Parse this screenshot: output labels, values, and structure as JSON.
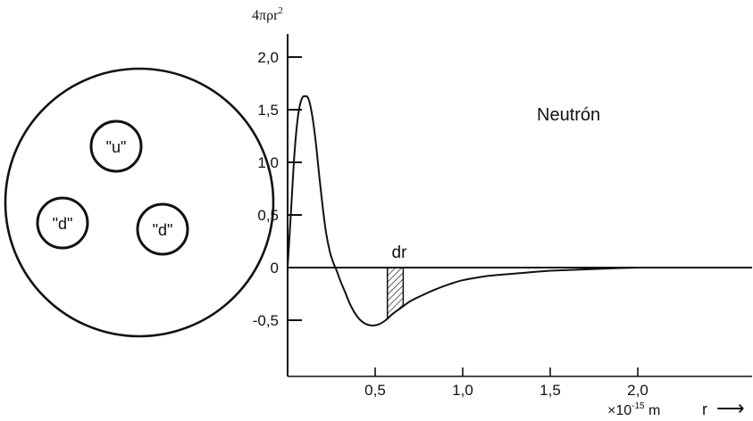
{
  "nucleon_diagram": {
    "quarks": [
      "\"u\"",
      "\"d\"",
      "\"d\""
    ]
  },
  "chart_data": {
    "type": "line",
    "title": "Neutrón",
    "ylabel_base": "4πρr",
    "ylabel_sup": "2",
    "xunit_base": "×10",
    "xunit_sup": "-15",
    "xunit_suffix": " m",
    "xaxis_label": "r",
    "xaxis_arrow": "⟶",
    "shaded_label": "dr",
    "xlim": [
      0,
      2.6
    ],
    "ylim": [
      -1.0,
      2.0
    ],
    "x_ticks": [
      0.5,
      1.0,
      1.5,
      2.0
    ],
    "x_tick_labels": [
      "0,5",
      "1,0",
      "1,5",
      "2,0"
    ],
    "y_ticks": [
      2.0,
      1.5,
      1.0,
      0.5,
      0,
      -0.5
    ],
    "y_tick_labels": [
      "2,0",
      "1,5",
      "1,0",
      "0,5",
      "0",
      "-0,5"
    ],
    "shaded_strip": [
      0.57,
      0.66
    ],
    "colors": {
      "line": "#111111",
      "background": "#ffffff"
    },
    "series": [
      {
        "x": [
          0.0,
          0.02,
          0.04,
          0.06,
          0.08,
          0.1,
          0.12,
          0.14,
          0.16,
          0.18,
          0.2,
          0.22,
          0.24,
          0.26,
          0.28,
          0.3,
          0.33,
          0.36,
          0.4,
          0.44,
          0.48,
          0.52,
          0.56,
          0.6,
          0.65,
          0.7,
          0.76,
          0.84,
          0.92,
          1.0,
          1.1,
          1.2,
          1.35,
          1.5,
          1.65,
          1.8,
          2.0
        ],
        "y": [
          0.0,
          0.55,
          1.1,
          1.45,
          1.6,
          1.63,
          1.6,
          1.45,
          1.2,
          0.88,
          0.58,
          0.33,
          0.16,
          0.05,
          -0.03,
          -0.12,
          -0.24,
          -0.36,
          -0.47,
          -0.53,
          -0.55,
          -0.54,
          -0.5,
          -0.44,
          -0.38,
          -0.32,
          -0.27,
          -0.21,
          -0.16,
          -0.12,
          -0.09,
          -0.07,
          -0.05,
          -0.03,
          -0.02,
          -0.01,
          0.0
        ]
      }
    ]
  }
}
